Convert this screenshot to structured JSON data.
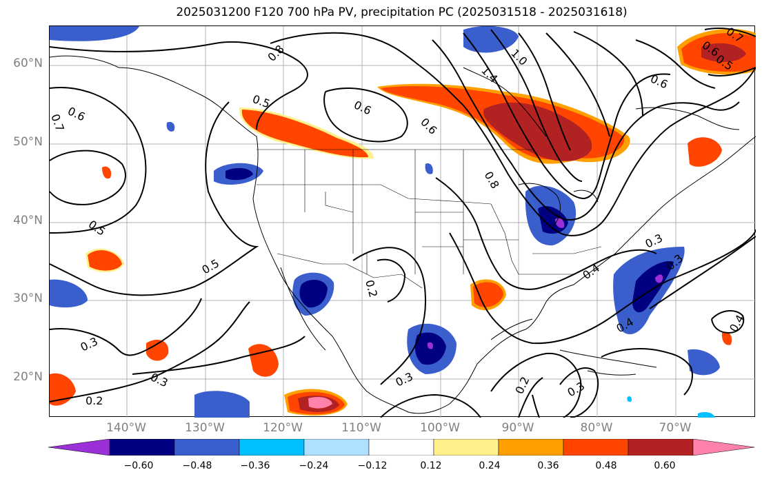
{
  "title": "2025031200 F120 700 hPa PV, precipitation PC (2025031518 - 2025031618)",
  "lat_labels": [
    "60°N",
    "50°N",
    "40°N",
    "30°N",
    "20°N"
  ],
  "lon_labels": [
    "140°W",
    "130°W",
    "120°W",
    "110°W",
    "100°W",
    "90°W",
    "80°W",
    "70°W"
  ],
  "contour_labels": [
    "0.8",
    "0.5",
    "0.6",
    "0.6",
    "0.7",
    "0.6",
    "0.8",
    "1.0",
    "0.6",
    "0.5",
    "0.5",
    "0.3",
    "0.3",
    "0.2",
    "0.2",
    "0.3",
    "0.4",
    "0.3",
    "0.4",
    "0.3",
    "0.4",
    "0.3",
    "0.2",
    "0.7",
    "0.6",
    "0.5",
    "1.4"
  ],
  "colorbar": {
    "ticks": [
      "−0.60",
      "−0.48",
      "−0.36",
      "−0.24",
      "−0.12",
      "0.12",
      "0.24",
      "0.36",
      "0.48",
      "0.60"
    ],
    "colors": [
      "#9b30d9",
      "#000080",
      "#3a5fcd",
      "#00bfff",
      "#b0e0ff",
      "#ffffff",
      "#fff08c",
      "#ff9f00",
      "#ff4500",
      "#b22222",
      "#ff82ab"
    ]
  }
}
